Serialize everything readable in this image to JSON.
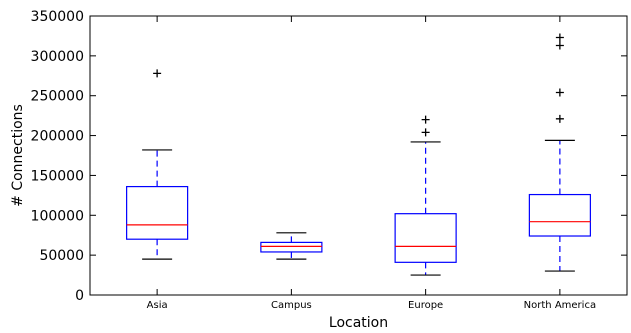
{
  "chart_data": {
    "type": "box",
    "xlabel": "Location",
    "ylabel": "# Connections",
    "ylim": [
      0,
      350000
    ],
    "yticks": [
      0,
      50000,
      100000,
      150000,
      200000,
      250000,
      300000,
      350000
    ],
    "grid": false,
    "box_color": "#0000ff",
    "median_color": "#ff0000",
    "whisker_color": "#0000ff",
    "cap_color": "#000000",
    "flier_color": "#000000",
    "categories": [
      "Asia",
      "Campus",
      "Europe",
      "North America"
    ],
    "boxes": [
      {
        "label": "Asia",
        "whisker_low": 45000,
        "q1": 70000,
        "median": 88000,
        "q3": 136000,
        "whisker_high": 182000,
        "outliers": [
          278000
        ]
      },
      {
        "label": "Campus",
        "whisker_low": 45000,
        "q1": 54000,
        "median": 61000,
        "q3": 66000,
        "whisker_high": 78000,
        "outliers": []
      },
      {
        "label": "Europe",
        "whisker_low": 25000,
        "q1": 41000,
        "median": 61000,
        "q3": 102000,
        "whisker_high": 192000,
        "outliers": [
          204000,
          220000
        ]
      },
      {
        "label": "North America",
        "whisker_low": 30000,
        "q1": 74000,
        "median": 92000,
        "q3": 126000,
        "whisker_high": 194000,
        "outliers": [
          221000,
          254000,
          313000,
          323000
        ]
      }
    ]
  }
}
